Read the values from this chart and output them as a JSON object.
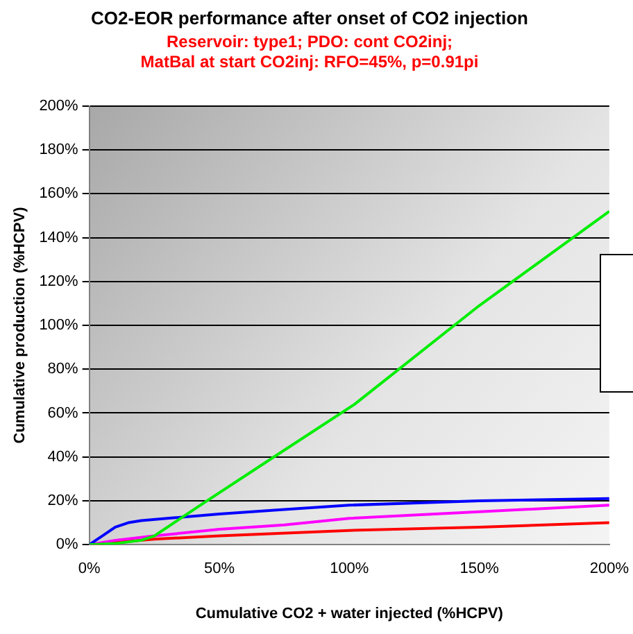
{
  "chart_data": {
    "type": "line",
    "title": "CO2-EOR performance after onset of CO2 injection",
    "subtitle": "Reservoir: type1; PDO: cont CO2inj;\nMatBal at start CO2inj: RFO=45%, p=0.91pi",
    "xlabel": "Cumulative CO2 + water injected (%HCPV)",
    "ylabel": "Cumulative production (%HCPV)",
    "series": [
      {
        "color": "#00ee00",
        "x": [
          0,
          10,
          20,
          25,
          44,
          71,
          102,
          150,
          200
        ],
        "values": [
          0,
          0.5,
          2,
          4,
          19,
          40,
          64,
          109,
          152
        ]
      },
      {
        "color": "#0000ff",
        "x": [
          0,
          5,
          10,
          15,
          20,
          30,
          50,
          75,
          100,
          150,
          200
        ],
        "values": [
          0,
          4,
          8,
          10,
          11,
          12,
          14,
          16,
          18,
          20,
          21
        ]
      },
      {
        "color": "#ff00ff",
        "x": [
          0,
          10,
          25,
          50,
          75,
          100,
          150,
          200
        ],
        "values": [
          0,
          2,
          4,
          7,
          9,
          12,
          15,
          18
        ]
      },
      {
        "color": "#ff0000",
        "x": [
          0,
          10,
          25,
          50,
          100,
          150,
          200
        ],
        "values": [
          0,
          1,
          2.5,
          4,
          6.5,
          8,
          10
        ]
      }
    ],
    "xlim": [
      0,
      200
    ],
    "xticks": [
      {
        "value": 0,
        "label": "0%"
      },
      {
        "value": 50,
        "label": "50%"
      },
      {
        "value": 100,
        "label": "100%"
      },
      {
        "value": 150,
        "label": "150%"
      },
      {
        "value": 200,
        "label": "200%"
      }
    ],
    "ylim": [
      0,
      200
    ],
    "yticks": [
      {
        "value": 0,
        "label": "0%"
      },
      {
        "value": 20,
        "label": "20%"
      },
      {
        "value": 40,
        "label": "40%"
      },
      {
        "value": 60,
        "label": "60%"
      },
      {
        "value": 80,
        "label": "80%"
      },
      {
        "value": 100,
        "label": "100%"
      },
      {
        "value": 120,
        "label": "120%"
      },
      {
        "value": 140,
        "label": "140%"
      },
      {
        "value": 160,
        "label": "160%"
      },
      {
        "value": 180,
        "label": "180%"
      },
      {
        "value": 200,
        "label": "200%"
      }
    ],
    "grid": "y",
    "legend": false,
    "marker": "none",
    "line_style": "solid"
  }
}
